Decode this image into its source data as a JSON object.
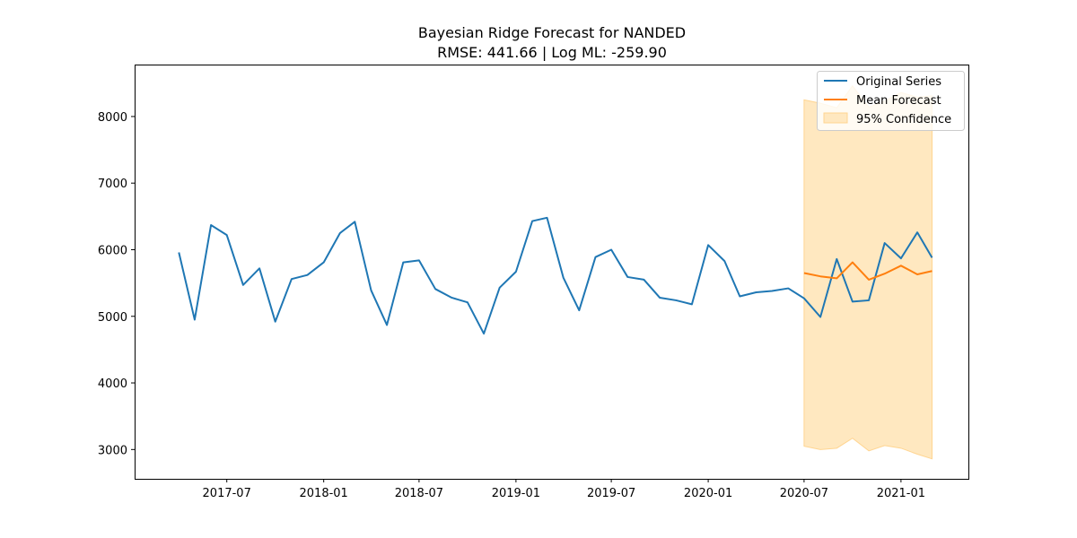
{
  "chart_data": {
    "type": "line",
    "title": "Bayesian Ridge Forecast for NANDED",
    "subtitle": "RMSE: 441.66 | Log ML: -259.90",
    "xlabel": "",
    "ylabel": "",
    "grid": false,
    "legend_position": "top-right",
    "x_ticks": [
      "2017-07",
      "2018-01",
      "2018-07",
      "2019-01",
      "2019-07",
      "2020-01",
      "2020-07",
      "2021-01"
    ],
    "y_ticks": [
      3000,
      4000,
      5000,
      6000,
      7000,
      8000
    ],
    "xlim": [
      "2017-01-07",
      "2021-05-09"
    ],
    "ylim": [
      2560,
      8780
    ],
    "series": [
      {
        "name": "Original Series",
        "color": "#1f77b4",
        "x": [
          "2017-04",
          "2017-05",
          "2017-06",
          "2017-07",
          "2017-08",
          "2017-09",
          "2017-10",
          "2017-11",
          "2017-12",
          "2018-01",
          "2018-02",
          "2018-03",
          "2018-04",
          "2018-05",
          "2018-06",
          "2018-07",
          "2018-08",
          "2018-09",
          "2018-10",
          "2018-11",
          "2018-12",
          "2019-01",
          "2019-02",
          "2019-03",
          "2019-04",
          "2019-05",
          "2019-06",
          "2019-07",
          "2019-08",
          "2019-09",
          "2019-10",
          "2019-11",
          "2019-12",
          "2020-01",
          "2020-02",
          "2020-03",
          "2020-04",
          "2020-05",
          "2020-06",
          "2020-07",
          "2020-08",
          "2020-09",
          "2020-10",
          "2020-11",
          "2020-12",
          "2021-01",
          "2021-02",
          "2021-03"
        ],
        "values": [
          5960,
          4950,
          6370,
          6220,
          5470,
          5720,
          4920,
          5560,
          5620,
          5810,
          6250,
          6420,
          5390,
          4870,
          5810,
          5840,
          5410,
          5280,
          5210,
          4740,
          5430,
          5670,
          6430,
          6480,
          5580,
          5090,
          5890,
          6000,
          5590,
          5550,
          5280,
          5240,
          5180,
          6070,
          5830,
          5300,
          5360,
          5380,
          5420,
          5270,
          4990,
          5860,
          5220,
          5240,
          6100,
          5870,
          6260,
          5880
        ]
      },
      {
        "name": "Mean Forecast",
        "color": "#ff7f0e",
        "x": [
          "2020-07",
          "2020-08",
          "2020-09",
          "2020-10",
          "2020-11",
          "2020-12",
          "2021-01",
          "2021-02",
          "2021-03"
        ],
        "values": [
          5650,
          5600,
          5570,
          5810,
          5550,
          5640,
          5760,
          5630,
          5680
        ]
      }
    ],
    "confidence_band": {
      "name": "95% Confidence",
      "color": "#ffe8c0",
      "edge_color": "#ffd591",
      "x": [
        "2020-07",
        "2020-08",
        "2020-09",
        "2020-10",
        "2020-11",
        "2020-12",
        "2021-01",
        "2021-02",
        "2021-03"
      ],
      "upper": [
        8250,
        8200,
        8130,
        8460,
        8140,
        8230,
        8360,
        8290,
        8310
      ],
      "lower": [
        3050,
        3000,
        3020,
        3170,
        2980,
        3060,
        3020,
        2930,
        2860
      ]
    }
  }
}
